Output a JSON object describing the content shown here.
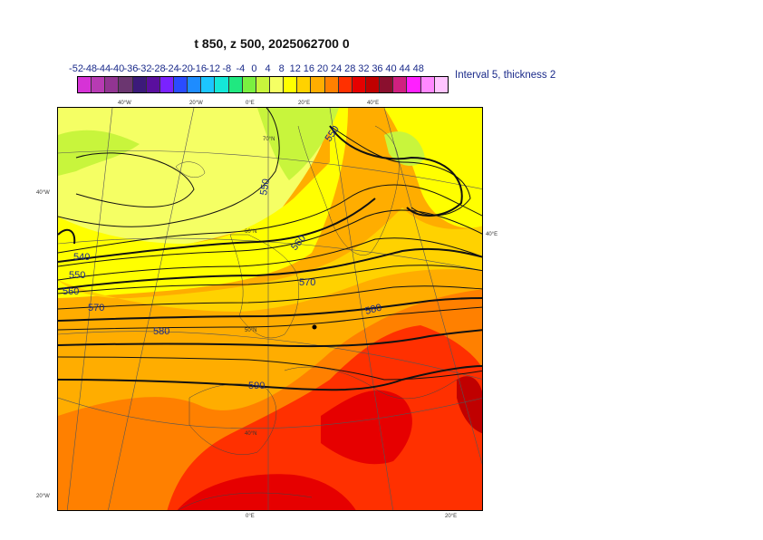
{
  "title": "t 850, z 500, 2025062700 0",
  "legend": {
    "labels": [
      "-52",
      "-48",
      "-44",
      "-40",
      "-36",
      "-32",
      "-28",
      "-24",
      "-20",
      "-16",
      "-12",
      "-8",
      "-4",
      "0",
      "4",
      "8",
      "12",
      "16",
      "20",
      "24",
      "28",
      "32",
      "36",
      "40",
      "44",
      "48"
    ],
    "colors": [
      "#d633d6",
      "#b73bb3",
      "#923592",
      "#6b3670",
      "#3c1a7a",
      "#5a0f9e",
      "#7a22ff",
      "#2a4cff",
      "#1e8cff",
      "#1cc6ff",
      "#14e8d8",
      "#20e880",
      "#7af040",
      "#c8f53c",
      "#f5ff64",
      "#ffff00",
      "#ffd200",
      "#ffad00",
      "#ff8000",
      "#ff3000",
      "#e60000",
      "#c00000",
      "#8a0f2e",
      "#d02080",
      "#ff20ff",
      "#ff88ff",
      "#ffc4ff"
    ],
    "note": "Interval 5, thickness 2"
  },
  "map": {
    "grid_labels": {
      "top": [
        "40°W",
        "20°W",
        "0°E",
        "20°E",
        "40°E"
      ],
      "left": [
        "40°W",
        "20°W"
      ],
      "right": [
        "40°E"
      ],
      "bottom": [
        "0°E",
        "20°E"
      ],
      "latitudes": [
        "70°N",
        "60°N",
        "50°N",
        "40°N"
      ]
    },
    "contour_labels": [
      "540",
      "550",
      "560",
      "570",
      "580",
      "590",
      "550",
      "560",
      "570",
      "580",
      "550"
    ]
  }
}
